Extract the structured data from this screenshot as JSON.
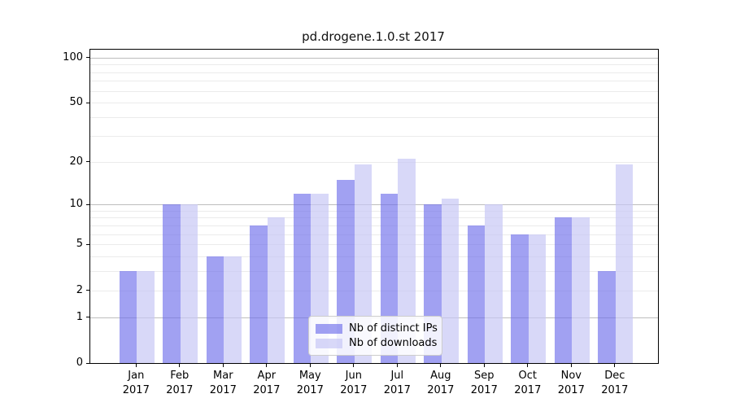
{
  "chart_data": {
    "type": "bar",
    "title": "pd.drogene.1.0.st 2017",
    "categories": [
      "Jan 2017",
      "Feb 2017",
      "Mar 2017",
      "Apr 2017",
      "May 2017",
      "Jun 2017",
      "Jul 2017",
      "Aug 2017",
      "Sep 2017",
      "Oct 2017",
      "Nov 2017",
      "Dec 2017"
    ],
    "series": [
      {
        "name": "Nb of distinct IPs",
        "color": "#a1a1f0",
        "fill": "rgba(110,110,235,0.65)",
        "values": [
          3,
          10,
          4,
          7,
          12,
          15,
          12,
          10,
          7,
          6,
          8,
          3
        ]
      },
      {
        "name": "Nb of downloads",
        "color": "#d8d8f8",
        "fill": "rgba(200,200,245,0.7)",
        "values": [
          3,
          10,
          4,
          8,
          12,
          19,
          21,
          11,
          10,
          6,
          8,
          19
        ]
      }
    ],
    "xlabel": "",
    "ylabel": "",
    "yscale": "log10(1+v)",
    "ylim": [
      0,
      113
    ],
    "yticks": [
      0,
      1,
      2,
      5,
      10,
      20,
      50,
      100
    ],
    "major_gridlines": [
      1,
      10,
      100
    ],
    "minor_gridlines": [
      2,
      3,
      4,
      5,
      6,
      7,
      8,
      9,
      20,
      30,
      40,
      50,
      60,
      70,
      80,
      90
    ],
    "grid": "horizontal",
    "legend_position": "lower-center",
    "background": "#ffffff"
  }
}
